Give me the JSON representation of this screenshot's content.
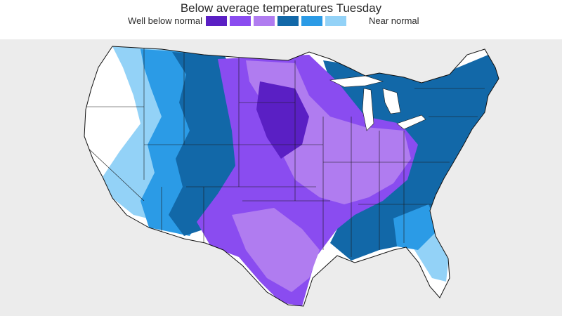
{
  "map": {
    "title": "Below average temperatures Tuesday",
    "legend": {
      "low_label": "Well below normal",
      "high_label": "Near normal",
      "scale_colors": [
        "#5a1fc4",
        "#8a4cf0",
        "#b07cf0",
        "#1268a8",
        "#2b9be6",
        "#93d2f7"
      ]
    }
  }
}
